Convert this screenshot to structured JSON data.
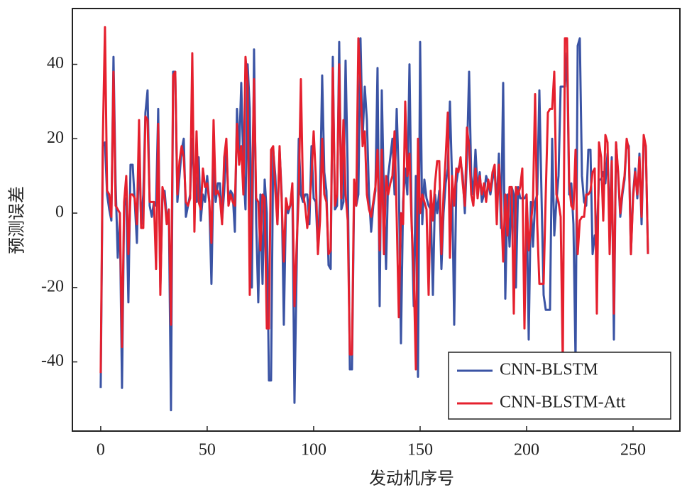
{
  "chart_data": {
    "type": "line",
    "xlabel": "发动机序号",
    "ylabel": "预测误差",
    "x": [
      0,
      1,
      2,
      3,
      4,
      5,
      6,
      7,
      8,
      9,
      10,
      11,
      12,
      13,
      14,
      15,
      16,
      17,
      18,
      19,
      20,
      21,
      22,
      23,
      24,
      25,
      26,
      27,
      28,
      29,
      30,
      31,
      32,
      33,
      34,
      35,
      36,
      37,
      38,
      39,
      40,
      41,
      42,
      43,
      44,
      45,
      46,
      47,
      48,
      49,
      50,
      51,
      52,
      53,
      54,
      55,
      56,
      57,
      58,
      59,
      60,
      61,
      62,
      63,
      64,
      65,
      66,
      67,
      68,
      69,
      70,
      71,
      72,
      73,
      74,
      75,
      76,
      77,
      78,
      79,
      80,
      81,
      82,
      83,
      84,
      85,
      86,
      87,
      88,
      89,
      90,
      91,
      92,
      93,
      94,
      95,
      96,
      97,
      98,
      99,
      100,
      101,
      102,
      103,
      104,
      105,
      106,
      107,
      108,
      109,
      110,
      111,
      112,
      113,
      114,
      115,
      116,
      117,
      118,
      119,
      120,
      121,
      122,
      123,
      124,
      125,
      126,
      127,
      128,
      129,
      130,
      131,
      132,
      133,
      134,
      135,
      136,
      137,
      138,
      139,
      140,
      141,
      142,
      143,
      144,
      145,
      146,
      147,
      148,
      149,
      150,
      151,
      152,
      153,
      154,
      155,
      156,
      157,
      158,
      159,
      160,
      161,
      162,
      163,
      164,
      165,
      166,
      167,
      168,
      169,
      170,
      171,
      172,
      173,
      174,
      175,
      176,
      177,
      178,
      179,
      180,
      181,
      182,
      183,
      184,
      185,
      186,
      187,
      188,
      189,
      190,
      191,
      192,
      193,
      194,
      195,
      196,
      197,
      198,
      199,
      200,
      201,
      202,
      203,
      204,
      205,
      206,
      207,
      208,
      209,
      210,
      211,
      212,
      213,
      214,
      215,
      216,
      217,
      218,
      219,
      220,
      221,
      222,
      223,
      224,
      225,
      226,
      227,
      228,
      229,
      230,
      231,
      232,
      233,
      234,
      235,
      236,
      237,
      238,
      239,
      240,
      241,
      242,
      243,
      244,
      245,
      246,
      247,
      248,
      249,
      250,
      251,
      252,
      253,
      254,
      255,
      256,
      257
    ],
    "series": [
      {
        "name": "CNN-BLSTM",
        "color": "#3a53a4",
        "values": [
          -47,
          18,
          19,
          5,
          1,
          -2,
          42,
          8,
          -12,
          -2,
          -47,
          2,
          4,
          -24,
          13,
          13,
          3,
          -8,
          18,
          -3,
          5,
          27,
          33,
          2,
          -1,
          3,
          2,
          28,
          -20,
          4,
          6,
          -1,
          0,
          -53,
          38,
          38,
          3,
          10,
          17,
          20,
          -1,
          2,
          5,
          20,
          8,
          3,
          15,
          -2,
          5,
          3,
          10,
          3,
          -19,
          12,
          3,
          8,
          8,
          -2,
          6,
          18,
          3,
          6,
          5,
          -5,
          28,
          16,
          35,
          12,
          1,
          40,
          28,
          -20,
          44,
          -2,
          -24,
          5,
          -19,
          9,
          0,
          -45,
          -45,
          17,
          10,
          -3,
          17,
          5,
          -30,
          2,
          0,
          2,
          6,
          -51,
          -15,
          20,
          5,
          3,
          5,
          5,
          -3,
          18,
          4,
          3,
          -10,
          5,
          37,
          11,
          6,
          -14,
          -15,
          42,
          1,
          2,
          46,
          1,
          3,
          41,
          11,
          -42,
          -42,
          5,
          2,
          5,
          47,
          20,
          34,
          25,
          5,
          -5,
          2,
          6,
          39,
          -25,
          33,
          5,
          -15,
          10,
          15,
          20,
          5,
          28,
          9,
          -35,
          3,
          12,
          5,
          40,
          -1,
          -25,
          10,
          -44,
          46,
          -3,
          9,
          4,
          2,
          1,
          -22,
          5,
          0,
          6,
          -15,
          0,
          8,
          12,
          30,
          9,
          -30,
          8,
          12,
          14,
          10,
          0,
          15,
          38,
          10,
          5,
          17,
          6,
          11,
          3,
          5,
          10,
          8,
          5,
          9,
          12,
          2,
          16,
          -4,
          35,
          -23,
          5,
          -9,
          7,
          5,
          -20,
          7,
          4,
          4,
          4,
          5,
          -34,
          3,
          -9,
          3,
          5,
          33,
          5,
          -22,
          -26,
          -26,
          -26,
          20,
          -6,
          3,
          10,
          34,
          34,
          34,
          43,
          5,
          8,
          -3,
          -40,
          45,
          47,
          10,
          3,
          2,
          17,
          17,
          -11,
          -6,
          -6,
          9,
          9,
          11,
          8,
          16,
          -3,
          15,
          -34,
          19,
          10,
          -1,
          5,
          9,
          19,
          18,
          -11,
          5,
          12,
          4,
          16,
          -3,
          19,
          18,
          -11
        ]
      },
      {
        "name": "CNN-BLSTM-Att",
        "color": "#e5202e",
        "values": [
          -43,
          20,
          50,
          6,
          5,
          -1,
          38,
          2,
          1,
          0,
          -36,
          3,
          10,
          -11,
          5,
          5,
          4,
          -3,
          25,
          -4,
          -4,
          26,
          25,
          3,
          3,
          3,
          -15,
          24,
          -22,
          7,
          4,
          -3,
          1,
          -30,
          37,
          38,
          5,
          14,
          18,
          15,
          3,
          2,
          4,
          43,
          -5,
          22,
          3,
          1,
          12,
          7,
          8,
          3,
          -8,
          25,
          5,
          6,
          4,
          -3,
          15,
          20,
          2,
          5,
          3,
          2,
          24,
          13,
          18,
          5,
          42,
          35,
          -22,
          5,
          36,
          4,
          3,
          -10,
          5,
          4,
          -31,
          -31,
          17,
          18,
          6,
          -3,
          18,
          3,
          -13,
          4,
          1,
          2,
          8,
          -25,
          -9,
          5,
          36,
          5,
          2,
          -4,
          2,
          10,
          22,
          10,
          -11,
          -2,
          20,
          5,
          3,
          -11,
          -10,
          39,
          2,
          5,
          40,
          4,
          25,
          5,
          -2,
          -38,
          -38,
          9,
          2,
          47,
          35,
          18,
          22,
          5,
          1,
          -1,
          3,
          7,
          17,
          -10,
          17,
          -11,
          10,
          5,
          8,
          10,
          22,
          -1,
          -28,
          0,
          -3,
          30,
          10,
          16,
          -3,
          -16,
          -42,
          20,
          0,
          5,
          3,
          1,
          -22,
          6,
          -2,
          8,
          14,
          14,
          -11,
          5,
          15,
          27,
          -12,
          10,
          2,
          12,
          11,
          15,
          8,
          2,
          23,
          18,
          5,
          2,
          12,
          4,
          10,
          5,
          8,
          3,
          9,
          6,
          11,
          13,
          -3,
          13,
          3,
          -13,
          5,
          -6,
          7,
          7,
          -27,
          7,
          5,
          7,
          12,
          -31,
          5,
          -10,
          -3,
          3,
          32,
          -3,
          -19,
          -19,
          -19,
          5,
          27,
          28,
          28,
          38,
          5,
          3,
          -1,
          -41,
          47,
          47,
          8,
          2,
          1,
          17,
          -11,
          -2,
          -1,
          -1,
          5,
          5,
          6,
          11,
          12,
          -27,
          19,
          15,
          -2,
          21,
          19,
          -11,
          14,
          -27,
          19,
          11,
          0,
          6,
          10,
          20,
          17,
          -11,
          4,
          11,
          5,
          15,
          -1,
          21,
          18,
          -11
        ]
      }
    ],
    "xlim": [
      -13.3,
      272
    ],
    "ylim": [
      -58.6,
      55
    ],
    "xticks": [
      0,
      50,
      100,
      150,
      200,
      250
    ],
    "yticks": [
      -40,
      -20,
      0,
      20,
      40
    ],
    "grid": false,
    "legend": "lower right"
  }
}
